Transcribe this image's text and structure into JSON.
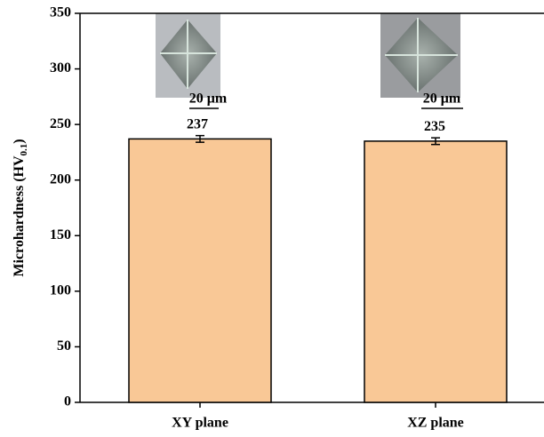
{
  "chart_data": {
    "type": "bar",
    "ylabel": [
      "Microhardness (HV",
      "0.1",
      ")"
    ],
    "categories": [
      "XY plane",
      "XZ plane"
    ],
    "values": [
      237,
      235
    ],
    "errors": [
      3,
      3
    ],
    "color": "#f9c896",
    "ylim": [
      0,
      350
    ],
    "yticks": [
      0,
      50,
      100,
      150,
      200,
      250,
      300,
      350
    ],
    "annotations": [
      "20 μm",
      "20 μm"
    ]
  }
}
